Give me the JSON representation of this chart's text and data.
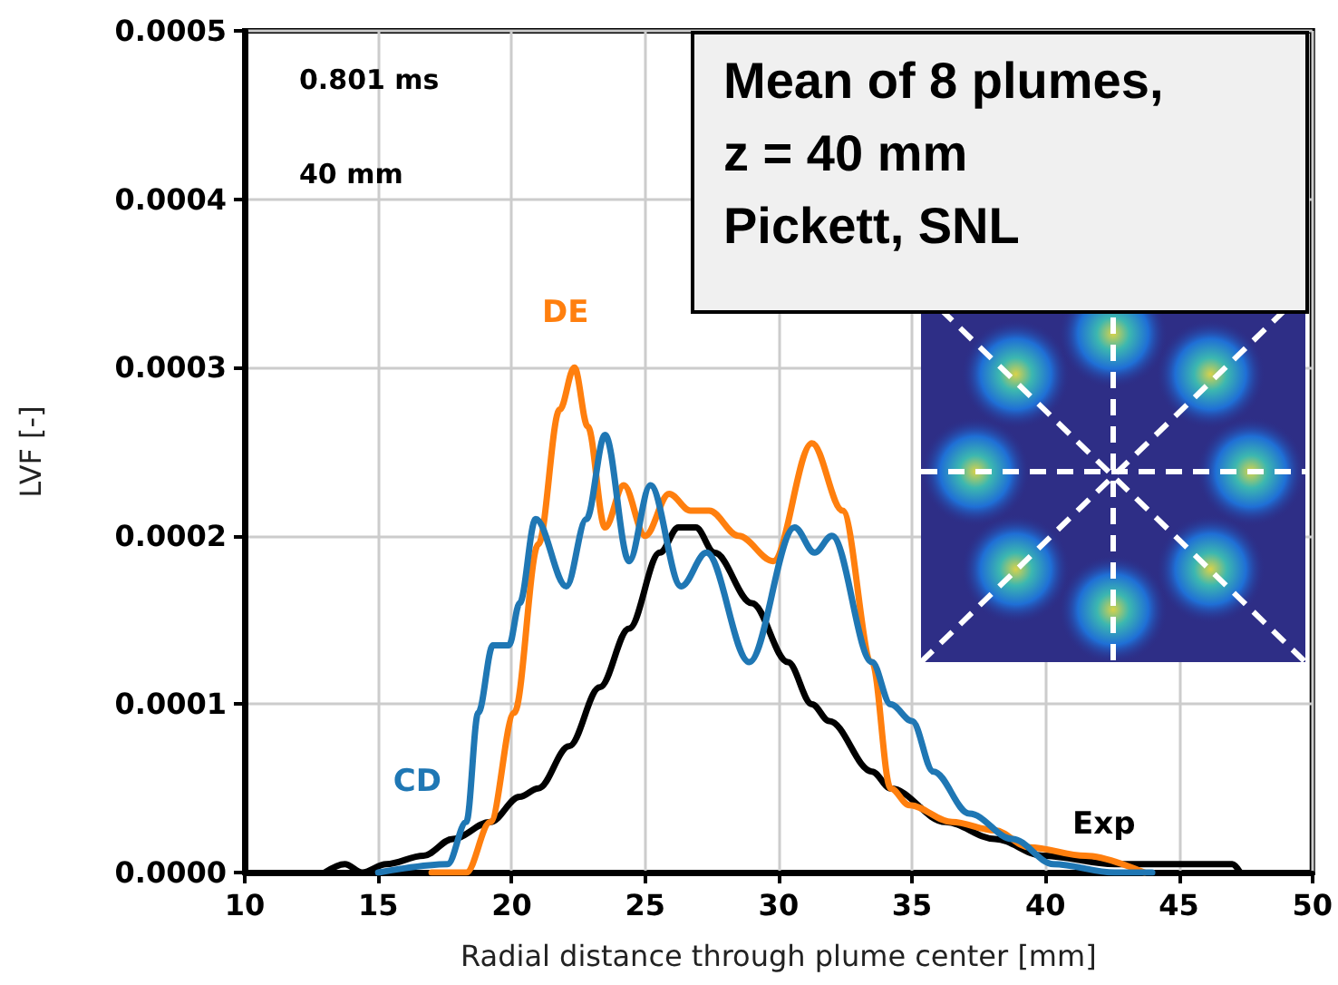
{
  "chart_data": {
    "type": "line",
    "xlabel": "Radial distance through plume center [mm]",
    "ylabel": "LVF [-]",
    "annotations": [
      "0.801 ms",
      "40 mm",
      "Mean of 8 plumes,\nz = 40 mm\nPickett, SNL"
    ],
    "xlim": [
      10,
      50
    ],
    "xticks": [
      10,
      15,
      20,
      25,
      30,
      35,
      40,
      45,
      50
    ],
    "ylim": [
      0,
      0.0005
    ],
    "yticks": [
      {
        "value": 0,
        "label": "0.0000"
      },
      {
        "value": 0.0001,
        "label": "0.0001"
      },
      {
        "value": 0.0002,
        "label": "0.0002"
      },
      {
        "value": 0.0003,
        "label": "0.0003"
      },
      {
        "value": 0.0004,
        "label": "0.0004"
      },
      {
        "value": 0.0005,
        "label": "0.0005"
      }
    ],
    "grid": true,
    "marker": "none",
    "line_style": "solid",
    "series": [
      {
        "name": "CD",
        "color": "#1f77b4",
        "x": [
          15,
          17.6,
          18.3,
          18.75,
          19.3,
          19.9,
          20.3,
          20.9,
          22.05,
          22.8,
          23.5,
          24.4,
          25.2,
          26.35,
          27.3,
          28.9,
          30.6,
          31.35,
          32,
          33.5,
          34.2,
          35,
          35.8,
          37.15,
          38.75,
          40.3,
          42.6,
          44
        ],
        "values": [
          0,
          5e-06,
          3e-05,
          9.5e-05,
          0.000135,
          0.000135,
          0.00016,
          0.00021,
          0.00017,
          0.00021,
          0.00026,
          0.000185,
          0.00023,
          0.00017,
          0.00019,
          0.000125,
          0.000205,
          0.00019,
          0.0002,
          0.000125,
          0.0001,
          9e-05,
          6e-05,
          3.5e-05,
          2e-05,
          5e-06,
          0,
          0
        ]
      },
      {
        "name": "DE",
        "color": "#ff7f0e",
        "x": [
          17,
          18.3,
          19.2,
          20.1,
          21,
          21.8,
          22.35,
          22.85,
          23.5,
          24.2,
          25,
          25.9,
          26.7,
          27.4,
          28.5,
          29.8,
          31.25,
          32.4,
          33.5,
          34.2,
          34.9,
          36.5,
          38.1,
          39.4,
          41.5,
          43.7
        ],
        "values": [
          0,
          0,
          3e-05,
          9.5e-05,
          0.000195,
          0.000275,
          0.0003,
          0.000265,
          0.000205,
          0.00023,
          0.0002,
          0.000225,
          0.000215,
          0.000215,
          0.0002,
          0.000185,
          0.000255,
          0.000215,
          0.000125,
          5e-05,
          4e-05,
          3e-05,
          2.5e-05,
          1.5e-05,
          1e-05,
          0
        ]
      },
      {
        "name": "Exp",
        "color": "#000000",
        "x": [
          13,
          13.75,
          14.4,
          15.3,
          16.7,
          17.8,
          19.2,
          20.3,
          21,
          22.15,
          23.3,
          24.4,
          25.55,
          26.25,
          26.9,
          27.6,
          29,
          30.35,
          31.25,
          31.9,
          33.5,
          34.2,
          36.25,
          38.1,
          39.9,
          42.6,
          45,
          47,
          47.3
        ],
        "values": [
          0,
          5e-06,
          0,
          5e-06,
          1e-05,
          2e-05,
          3e-05,
          4.5e-05,
          5e-05,
          7.5e-05,
          0.00011,
          0.000145,
          0.00019,
          0.000205,
          0.000205,
          0.00019,
          0.00016,
          0.000125,
          0.0001,
          9e-05,
          6e-05,
          5e-05,
          3e-05,
          2e-05,
          1e-05,
          5e-06,
          5e-06,
          5e-06,
          0
        ]
      }
    ]
  }
}
